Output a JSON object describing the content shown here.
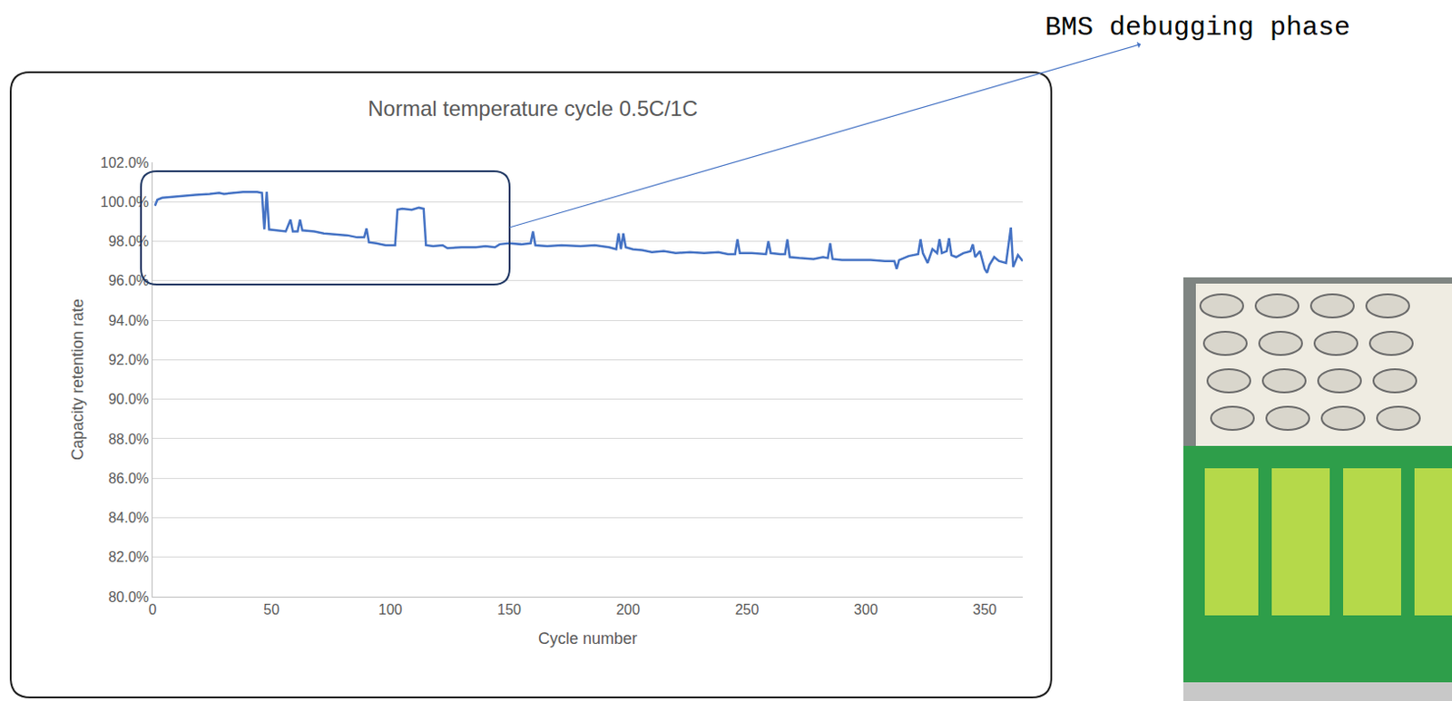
{
  "chart_data": {
    "type": "line",
    "title": "Normal temperature cycle 0.5C/1C",
    "x_label": "Cycle number",
    "y_label": "Capacity retention rate",
    "annotations": [
      "BMS debugging phase"
    ],
    "color": "#4472c4",
    "grid": true,
    "xlim": [
      0,
      366
    ],
    "xticks": [
      0,
      50,
      100,
      150,
      200,
      250,
      300,
      350
    ],
    "ylim": [
      80,
      102
    ],
    "yticks": [
      {
        "value": 80,
        "label": "80.0%"
      },
      {
        "value": 82,
        "label": "82.0%"
      },
      {
        "value": 84,
        "label": "84.0%"
      },
      {
        "value": 86,
        "label": "86.0%"
      },
      {
        "value": 88,
        "label": "88.0%"
      },
      {
        "value": 90,
        "label": "90.0%"
      },
      {
        "value": 92,
        "label": "92.0%"
      },
      {
        "value": 94,
        "label": "94.0%"
      },
      {
        "value": 96,
        "label": "96.0%"
      },
      {
        "value": 98,
        "label": "98.0%"
      },
      {
        "value": 100,
        "label": "100.0%"
      },
      {
        "value": 102,
        "label": "102.0%"
      }
    ],
    "x": [
      1,
      2,
      4,
      8,
      12,
      18,
      24,
      28,
      30,
      34,
      38,
      44,
      46,
      47,
      48,
      49,
      52,
      56,
      58,
      59,
      61,
      62,
      63,
      68,
      72,
      78,
      82,
      86,
      89,
      90,
      91,
      94,
      98,
      102,
      103,
      105,
      109,
      112,
      114,
      115,
      118,
      122,
      124,
      130,
      136,
      140,
      144,
      146,
      150,
      155,
      159,
      160,
      161,
      166,
      172,
      180,
      186,
      192,
      195,
      196,
      197,
      198,
      199,
      202,
      206,
      210,
      215,
      220,
      226,
      232,
      238,
      242,
      245,
      246,
      247,
      252,
      258,
      259,
      260,
      264,
      266,
      267,
      268,
      272,
      278,
      282,
      284,
      285,
      286,
      290,
      296,
      302,
      308,
      312,
      313,
      314,
      318,
      322,
      323,
      324,
      326,
      328,
      330,
      331,
      332,
      334,
      335,
      336,
      338,
      341,
      344,
      345,
      346,
      348,
      350,
      351,
      352,
      354,
      356,
      359,
      361,
      362,
      364,
      366
    ],
    "values": [
      99.8,
      100.1,
      100.2,
      100.25,
      100.3,
      100.35,
      100.4,
      100.45,
      100.4,
      100.45,
      100.5,
      100.5,
      100.45,
      98.6,
      100.5,
      98.6,
      98.55,
      98.5,
      99.1,
      98.5,
      98.5,
      99.1,
      98.55,
      98.5,
      98.4,
      98.35,
      98.3,
      98.2,
      98.2,
      98.65,
      97.95,
      97.9,
      97.8,
      97.8,
      99.6,
      99.65,
      99.6,
      99.7,
      99.65,
      97.8,
      97.75,
      97.8,
      97.65,
      97.7,
      97.7,
      97.75,
      97.7,
      97.85,
      97.9,
      97.85,
      97.9,
      98.5,
      97.8,
      97.75,
      97.8,
      97.75,
      97.8,
      97.7,
      97.6,
      98.4,
      97.6,
      98.4,
      97.7,
      97.6,
      97.55,
      97.45,
      97.5,
      97.4,
      97.45,
      97.4,
      97.45,
      97.35,
      97.35,
      98.1,
      97.4,
      97.4,
      97.35,
      98.0,
      97.4,
      97.35,
      97.35,
      98.1,
      97.2,
      97.15,
      97.1,
      97.2,
      97.15,
      97.9,
      97.1,
      97.05,
      97.05,
      97.05,
      97.0,
      97.0,
      96.6,
      97.05,
      97.25,
      97.35,
      98.1,
      97.4,
      96.9,
      97.6,
      97.4,
      98.1,
      97.4,
      97.5,
      98.15,
      97.3,
      97.2,
      97.4,
      97.5,
      97.85,
      97.2,
      97.5,
      96.6,
      96.4,
      96.8,
      97.2,
      97.0,
      96.9,
      98.7,
      96.7,
      97.3,
      97.0
    ]
  }
}
